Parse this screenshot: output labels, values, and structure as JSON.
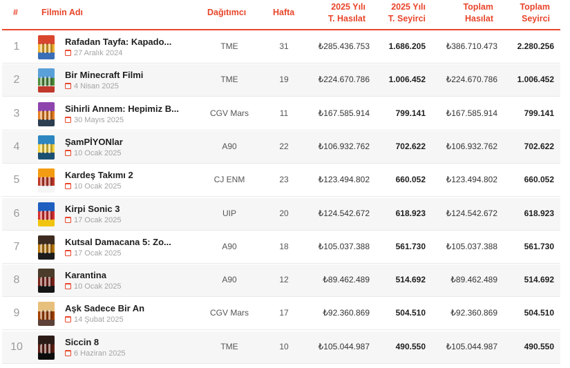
{
  "header": {
    "rank": "#",
    "film": "Filmin Adı",
    "distributor": "Dağıtımcı",
    "week": "Hafta",
    "gross_2025_line1": "2025 Yılı",
    "gross_2025_line2": "T. Hasılat",
    "admissions_2025_line1": "2025 Yılı",
    "admissions_2025_line2": "T. Seyirci",
    "total_gross_line1": "Toplam",
    "total_gross_line2": "Hasılat",
    "total_admissions_line1": "Toplam",
    "total_admissions_line2": "Seyirci"
  },
  "colors": {
    "accent": "#e8452a",
    "row_alt": "#f6f6f6"
  },
  "icons": {
    "date": "calendar-icon"
  },
  "rows": [
    {
      "rank": "1",
      "title": "Rafadan Tayfa: Kapado...",
      "date": "27 Aralık 2024",
      "distributor": "TME",
      "week": "31",
      "gross_2025": "₺285.436.753",
      "admissions_2025": "1.686.205",
      "total_gross": "₺386.710.473",
      "total_admissions": "2.280.256",
      "poster": [
        "#d9462e",
        "#f2b233",
        "#3a6fb8"
      ]
    },
    {
      "rank": "2",
      "title": "Bir Minecraft Filmi",
      "date": "4 Nisan 2025",
      "distributor": "TME",
      "week": "19",
      "gross_2025": "₺224.670.786",
      "admissions_2025": "1.006.452",
      "total_gross": "₺224.670.786",
      "total_admissions": "1.006.452",
      "poster": [
        "#5aa0d8",
        "#4f8f3a",
        "#c0392b"
      ]
    },
    {
      "rank": "3",
      "title": "Sihirli Annem: Hepimiz B...",
      "date": "30 Mayıs 2025",
      "distributor": "CGV Mars",
      "week": "11",
      "gross_2025": "₺167.585.914",
      "admissions_2025": "799.141",
      "total_gross": "₺167.585.914",
      "total_admissions": "799.141",
      "poster": [
        "#8e44ad",
        "#e67e22",
        "#2c3e50"
      ]
    },
    {
      "rank": "4",
      "title": "ŞamPİYONlar",
      "date": "10 Ocak 2025",
      "distributor": "A90",
      "week": "22",
      "gross_2025": "₺106.932.762",
      "admissions_2025": "702.622",
      "total_gross": "₺106.932.762",
      "total_admissions": "702.622",
      "poster": [
        "#2e86c1",
        "#f4d03f",
        "#1b4f72"
      ]
    },
    {
      "rank": "5",
      "title": "Kardeş Takımı 2",
      "date": "10 Ocak 2025",
      "distributor": "CJ ENM",
      "week": "23",
      "gross_2025": "₺123.494.802",
      "admissions_2025": "660.052",
      "total_gross": "₺123.494.802",
      "total_admissions": "660.052",
      "poster": [
        "#f39c12",
        "#c0392b",
        "#f5f5f5"
      ]
    },
    {
      "rank": "6",
      "title": "Kirpi Sonic 3",
      "date": "17 Ocak 2025",
      "distributor": "UIP",
      "week": "20",
      "gross_2025": "₺124.542.672",
      "admissions_2025": "618.923",
      "total_gross": "₺124.542.672",
      "total_admissions": "618.923",
      "poster": [
        "#1f5fbf",
        "#d63031",
        "#f1c40f"
      ]
    },
    {
      "rank": "7",
      "title": "Kutsal Damacana 5: Zo...",
      "date": "17 Ocak 2025",
      "distributor": "A90",
      "week": "18",
      "gross_2025": "₺105.037.388",
      "admissions_2025": "561.730",
      "total_gross": "₺105.037.388",
      "total_admissions": "561.730",
      "poster": [
        "#3d2b1f",
        "#b9770e",
        "#1c1c1c"
      ]
    },
    {
      "rank": "8",
      "title": "Karantina",
      "date": "10 Ocak 2025",
      "distributor": "A90",
      "week": "12",
      "gross_2025": "₺89.462.489",
      "admissions_2025": "514.692",
      "total_gross": "₺89.462.489",
      "total_admissions": "514.692",
      "poster": [
        "#4a3b2a",
        "#7b241c",
        "#151515"
      ]
    },
    {
      "rank": "9",
      "title": "Aşk Sadece Bir An",
      "date": "14 Şubat 2025",
      "distributor": "CGV Mars",
      "week": "17",
      "gross_2025": "₺92.360.869",
      "admissions_2025": "504.510",
      "total_gross": "₺92.360.869",
      "total_admissions": "504.510",
      "poster": [
        "#e8c07d",
        "#a04000",
        "#5d4037"
      ]
    },
    {
      "rank": "10",
      "title": "Siccin 8",
      "date": "6 Haziran 2025",
      "distributor": "TME",
      "week": "10",
      "gross_2025": "₺105.044.987",
      "admissions_2025": "490.550",
      "total_gross": "₺105.044.987",
      "total_admissions": "490.550",
      "poster": [
        "#2b1b17",
        "#5d1f14",
        "#0d0d0d"
      ]
    }
  ]
}
